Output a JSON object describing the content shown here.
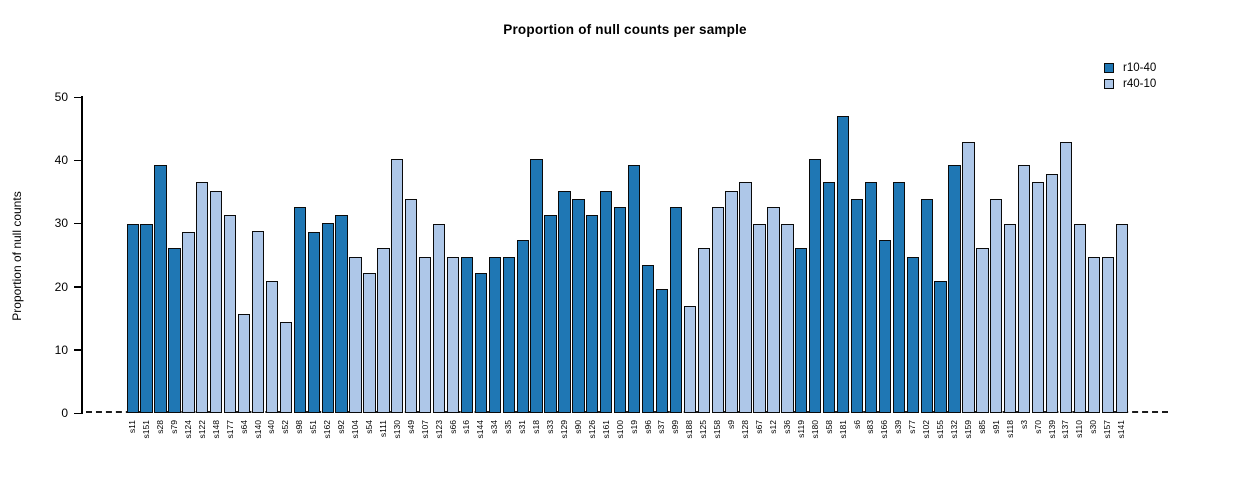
{
  "chart_data": {
    "type": "bar",
    "title": "Proportion of null counts per sample",
    "ylabel": "Proportion of null counts",
    "xlabel": "",
    "ylim": [
      0,
      50
    ],
    "yticks": [
      0,
      10,
      20,
      30,
      40,
      50
    ],
    "grid": false,
    "legend_position": "top-right",
    "zero_line_style": "dashed",
    "legend": [
      {
        "label": "r10-40",
        "color": "#1F77B4"
      },
      {
        "label": "r40-10",
        "color": "#AEC7E8"
      }
    ],
    "bars": [
      {
        "sample": "s11",
        "value": 29.9,
        "series": "r10-40"
      },
      {
        "sample": "s151",
        "value": 29.9,
        "series": "r10-40"
      },
      {
        "sample": "s28",
        "value": 39.2,
        "series": "r10-40"
      },
      {
        "sample": "s79",
        "value": 26.1,
        "series": "r10-40"
      },
      {
        "sample": "s124",
        "value": 28.7,
        "series": "r40-10"
      },
      {
        "sample": "s122",
        "value": 36.6,
        "series": "r40-10"
      },
      {
        "sample": "s148",
        "value": 35.2,
        "series": "r40-10"
      },
      {
        "sample": "s177",
        "value": 31.4,
        "series": "r40-10"
      },
      {
        "sample": "s64",
        "value": 15.7,
        "series": "r40-10"
      },
      {
        "sample": "s140",
        "value": 28.8,
        "series": "r40-10"
      },
      {
        "sample": "s40",
        "value": 20.9,
        "series": "r40-10"
      },
      {
        "sample": "s52",
        "value": 14.4,
        "series": "r40-10"
      },
      {
        "sample": "s98",
        "value": 32.6,
        "series": "r10-40"
      },
      {
        "sample": "s51",
        "value": 28.7,
        "series": "r10-40"
      },
      {
        "sample": "s162",
        "value": 30.0,
        "series": "r10-40"
      },
      {
        "sample": "s92",
        "value": 31.3,
        "series": "r10-40"
      },
      {
        "sample": "s104",
        "value": 24.7,
        "series": "r40-10"
      },
      {
        "sample": "s54",
        "value": 22.1,
        "series": "r40-10"
      },
      {
        "sample": "s111",
        "value": 26.1,
        "series": "r40-10"
      },
      {
        "sample": "s130",
        "value": 40.2,
        "series": "r40-10"
      },
      {
        "sample": "s49",
        "value": 33.8,
        "series": "r40-10"
      },
      {
        "sample": "s107",
        "value": 24.7,
        "series": "r40-10"
      },
      {
        "sample": "s123",
        "value": 29.9,
        "series": "r40-10"
      },
      {
        "sample": "s66",
        "value": 24.7,
        "series": "r40-10"
      },
      {
        "sample": "s16",
        "value": 24.7,
        "series": "r10-40"
      },
      {
        "sample": "s144",
        "value": 22.1,
        "series": "r10-40"
      },
      {
        "sample": "s34",
        "value": 24.7,
        "series": "r10-40"
      },
      {
        "sample": "s35",
        "value": 24.7,
        "series": "r10-40"
      },
      {
        "sample": "s31",
        "value": 27.4,
        "series": "r10-40"
      },
      {
        "sample": "s18",
        "value": 40.2,
        "series": "r10-40"
      },
      {
        "sample": "s33",
        "value": 31.3,
        "series": "r10-40"
      },
      {
        "sample": "s129",
        "value": 35.1,
        "series": "r10-40"
      },
      {
        "sample": "s90",
        "value": 33.8,
        "series": "r10-40"
      },
      {
        "sample": "s126",
        "value": 31.3,
        "series": "r10-40"
      },
      {
        "sample": "s161",
        "value": 35.1,
        "series": "r10-40"
      },
      {
        "sample": "s100",
        "value": 32.6,
        "series": "r10-40"
      },
      {
        "sample": "s19",
        "value": 39.2,
        "series": "r10-40"
      },
      {
        "sample": "s96",
        "value": 23.4,
        "series": "r10-40"
      },
      {
        "sample": "s37",
        "value": 19.6,
        "series": "r10-40"
      },
      {
        "sample": "s99",
        "value": 32.6,
        "series": "r10-40"
      },
      {
        "sample": "s188",
        "value": 17.0,
        "series": "r40-10"
      },
      {
        "sample": "s125",
        "value": 26.1,
        "series": "r40-10"
      },
      {
        "sample": "s158",
        "value": 32.6,
        "series": "r40-10"
      },
      {
        "sample": "s9",
        "value": 35.1,
        "series": "r40-10"
      },
      {
        "sample": "s128",
        "value": 36.6,
        "series": "r40-10"
      },
      {
        "sample": "s67",
        "value": 29.9,
        "series": "r40-10"
      },
      {
        "sample": "s12",
        "value": 32.6,
        "series": "r40-10"
      },
      {
        "sample": "s36",
        "value": 29.9,
        "series": "r40-10"
      },
      {
        "sample": "s119",
        "value": 26.1,
        "series": "r10-40"
      },
      {
        "sample": "s180",
        "value": 40.2,
        "series": "r10-40"
      },
      {
        "sample": "s58",
        "value": 36.5,
        "series": "r10-40"
      },
      {
        "sample": "s181",
        "value": 47.0,
        "series": "r10-40"
      },
      {
        "sample": "s6",
        "value": 33.8,
        "series": "r10-40"
      },
      {
        "sample": "s83",
        "value": 36.5,
        "series": "r10-40"
      },
      {
        "sample": "s166",
        "value": 27.4,
        "series": "r10-40"
      },
      {
        "sample": "s39",
        "value": 36.5,
        "series": "r10-40"
      },
      {
        "sample": "s77",
        "value": 24.7,
        "series": "r10-40"
      },
      {
        "sample": "s102",
        "value": 33.8,
        "series": "r10-40"
      },
      {
        "sample": "s155",
        "value": 20.9,
        "series": "r10-40"
      },
      {
        "sample": "s132",
        "value": 39.2,
        "series": "r10-40"
      },
      {
        "sample": "s159",
        "value": 42.9,
        "series": "r40-10"
      },
      {
        "sample": "s85",
        "value": 26.1,
        "series": "r40-10"
      },
      {
        "sample": "s91",
        "value": 33.8,
        "series": "r40-10"
      },
      {
        "sample": "s118",
        "value": 29.9,
        "series": "r40-10"
      },
      {
        "sample": "s3",
        "value": 39.2,
        "series": "r40-10"
      },
      {
        "sample": "s70",
        "value": 36.5,
        "series": "r40-10"
      },
      {
        "sample": "s139",
        "value": 37.8,
        "series": "r40-10"
      },
      {
        "sample": "s137",
        "value": 42.9,
        "series": "r40-10"
      },
      {
        "sample": "s110",
        "value": 29.9,
        "series": "r40-10"
      },
      {
        "sample": "s30",
        "value": 24.7,
        "series": "r40-10"
      },
      {
        "sample": "s157",
        "value": 24.7,
        "series": "r40-10"
      },
      {
        "sample": "s141",
        "value": 29.9,
        "series": "r40-10"
      }
    ]
  }
}
